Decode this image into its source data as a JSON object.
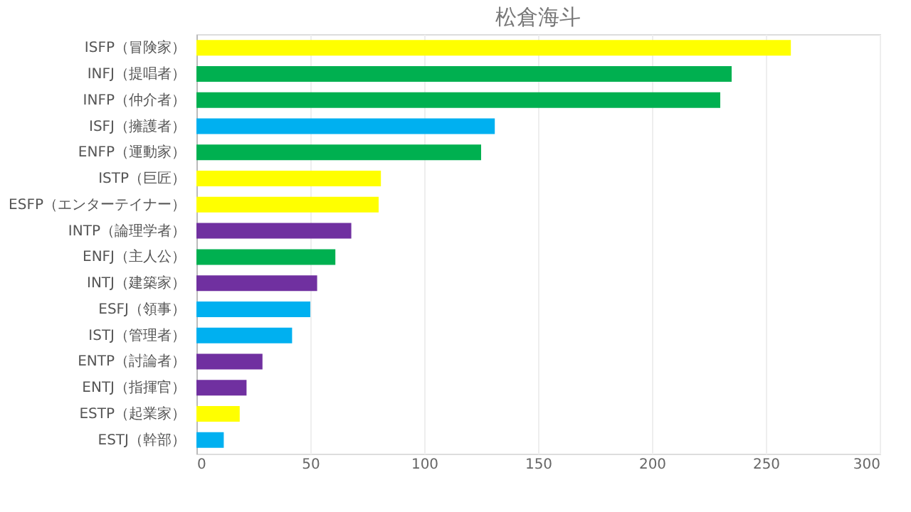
{
  "chart_data": {
    "type": "bar",
    "orientation": "horizontal",
    "title": "松倉海斗",
    "categories": [
      "ISFP（冒険家）",
      "INFJ（提唱者）",
      "INFP（仲介者）",
      "ISFJ（擁護者）",
      "ENFP（運動家）",
      "ISTP（巨匠）",
      "ESFP（エンターテイナー）",
      "INTP（論理学者）",
      "ENFJ（主人公）",
      "INTJ（建築家）",
      "ESFJ（領事）",
      "ISTJ（管理者）",
      "ENTP（討論者）",
      "ENTJ（指揮官）",
      "ESTP（起業家）",
      "ESTJ（幹部）"
    ],
    "values": [
      261,
      235,
      230,
      131,
      125,
      81,
      80,
      68,
      61,
      53,
      50,
      42,
      29,
      22,
      19,
      12
    ],
    "colors": [
      "#ffff00",
      "#00b050",
      "#00b050",
      "#00b0f0",
      "#00b050",
      "#ffff00",
      "#ffff00",
      "#7030a0",
      "#00b050",
      "#7030a0",
      "#00b0f0",
      "#00b0f0",
      "#7030a0",
      "#7030a0",
      "#ffff00",
      "#00b0f0"
    ],
    "xlim": [
      0,
      300
    ],
    "xticks": [
      0,
      50,
      100,
      150,
      200,
      250,
      300
    ],
    "grid": "x"
  }
}
